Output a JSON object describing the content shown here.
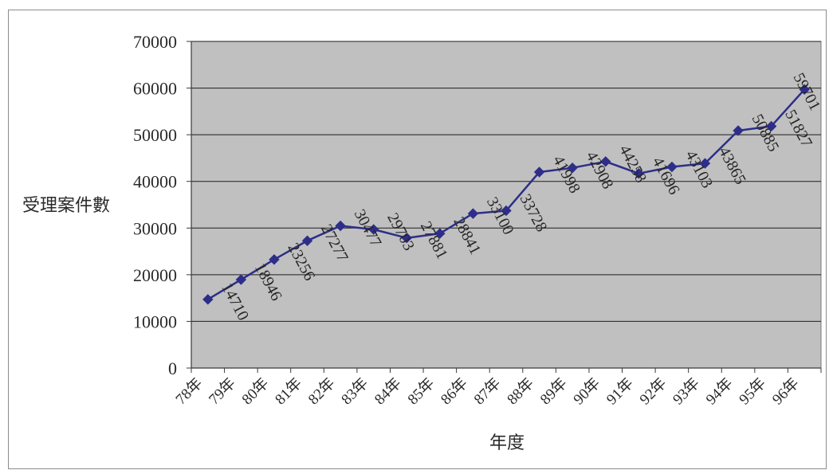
{
  "chart_data": {
    "type": "line",
    "categories": [
      "78年",
      "79年",
      "80年",
      "81年",
      "82年",
      "83年",
      "84年",
      "85年",
      "86年",
      "87年",
      "88年",
      "89年",
      "90年",
      "91年",
      "92年",
      "93年",
      "94年",
      "95年",
      "96年"
    ],
    "series": [
      {
        "values": [
          14710,
          18946,
          23256,
          27277,
          30477,
          29703,
          27881,
          28841,
          33100,
          33728,
          41998,
          42908,
          44258,
          41696,
          43103,
          43865,
          50885,
          51827,
          59701
        ]
      }
    ],
    "ylabel": "受理案件數",
    "xlabel": "年度",
    "ylim": [
      0,
      70000
    ],
    "yticks": [
      0,
      10000,
      20000,
      30000,
      40000,
      50000,
      60000,
      70000
    ],
    "grid": true,
    "data_labels": true,
    "colors": {
      "line": "#2e2e8a",
      "marker": "#2e2e8a",
      "plot_background": "#c0c0c0",
      "grid": "#1e1e1e",
      "axis": "#3a3a3a"
    }
  }
}
